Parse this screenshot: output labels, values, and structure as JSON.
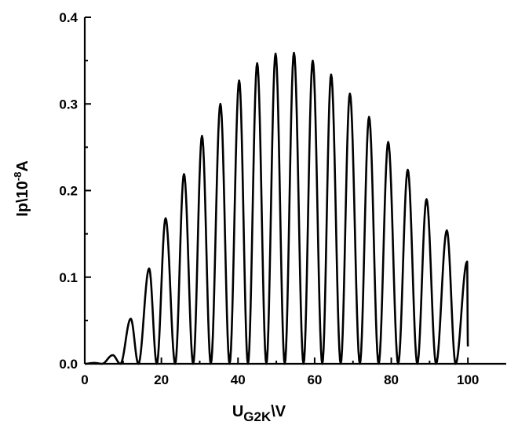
{
  "chart_data": {
    "type": "line",
    "title": "",
    "xlabel": {
      "main": "U",
      "sub": "G2K",
      "suffix": "\\V"
    },
    "ylabel": {
      "main": "Ip\\10",
      "sup": "-8",
      "suffix": "A"
    },
    "xlim": [
      0,
      110
    ],
    "ylim": [
      0,
      0.4
    ],
    "x_ticks": [
      0,
      20,
      40,
      60,
      80,
      100
    ],
    "x_tick_labels": [
      "0",
      "20",
      "40",
      "60",
      "80",
      "100"
    ],
    "y_ticks": [
      0.0,
      0.1,
      0.2,
      0.3,
      0.4
    ],
    "y_tick_labels": [
      "0.0",
      "0.1",
      "0.2",
      "0.3",
      "0.4"
    ],
    "grid": false,
    "legend": "none",
    "line_color": "#000000",
    "series": [
      {
        "values_note": "peak (x, y) and valley (x, y) extrema of the oscillating current curve",
        "x": [
          0,
          2.5,
          4.5,
          7.3,
          9.3,
          12.0,
          14.0,
          16.8,
          18.8,
          21.1,
          23.6,
          25.9,
          28.3,
          30.6,
          32.9,
          35.4,
          37.8,
          40.3,
          42.6,
          45.0,
          47.4,
          49.8,
          52.2,
          54.6,
          57.1,
          59.5,
          62.0,
          64.3,
          66.8,
          69.2,
          71.8,
          74.2,
          76.7,
          79.2,
          81.8,
          84.3,
          86.8,
          89.2,
          91.7,
          94.5,
          96.8,
          99.8,
          100.0
        ],
        "y": [
          0,
          0.001,
          0,
          0.01,
          0,
          0.052,
          0,
          0.11,
          0,
          0.168,
          0,
          0.219,
          0,
          0.263,
          0,
          0.3,
          0,
          0.327,
          0,
          0.347,
          0,
          0.358,
          0,
          0.359,
          0,
          0.35,
          0,
          0.334,
          0,
          0.312,
          0,
          0.285,
          0,
          0.256,
          0,
          0.224,
          0,
          0.19,
          0,
          0.154,
          0,
          0.118,
          0.02
        ]
      }
    ]
  }
}
